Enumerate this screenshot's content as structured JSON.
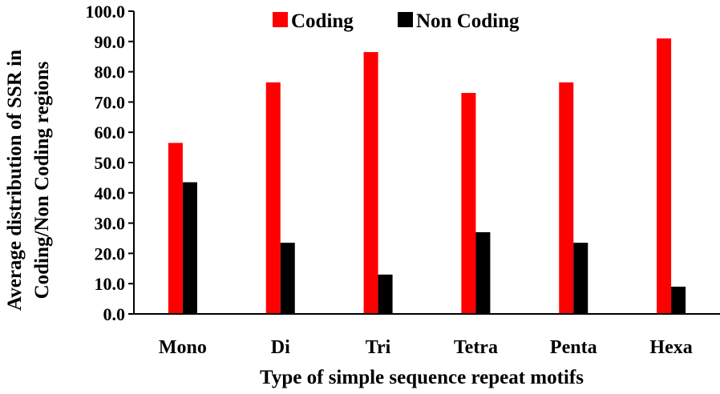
{
  "chart_data": {
    "type": "bar",
    "categories": [
      "Mono",
      "Di",
      "Tri",
      "Tetra",
      "Penta",
      "Hexa"
    ],
    "series": [
      {
        "name": "Coding",
        "color": "#ff0000",
        "values": [
          56.5,
          76.5,
          86.5,
          73.0,
          76.5,
          91.0
        ]
      },
      {
        "name": "Non Coding",
        "color": "#000000",
        "values": [
          43.5,
          23.5,
          13.0,
          27.0,
          23.5,
          9.0
        ]
      }
    ],
    "xlabel": "Type of simple sequence repeat motifs",
    "ylabel_lines": [
      "Average distribution of SSR in",
      "Coding/Non Coding regions"
    ],
    "ylim": [
      0,
      100
    ],
    "y_ticks": [
      "0.0",
      "10.0",
      "20.0",
      "30.0",
      "40.0",
      "50.0",
      "60.0",
      "70.0",
      "80.0",
      "90.0",
      "100.0"
    ],
    "legend": "top-center",
    "grid": false
  }
}
